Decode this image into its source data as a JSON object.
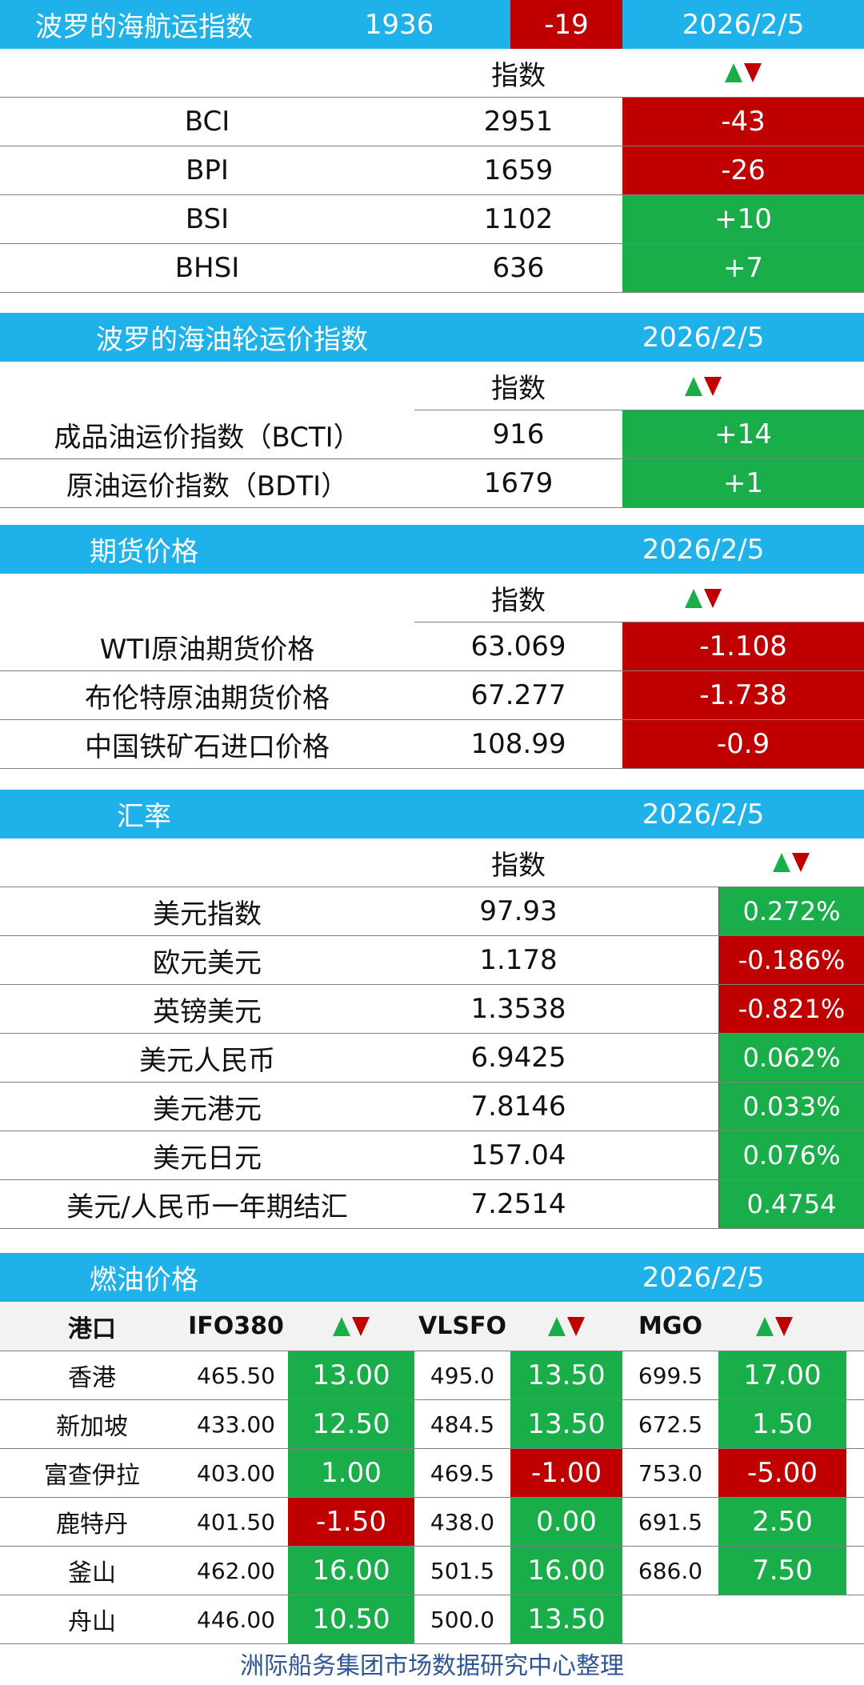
{
  "bdi": {
    "title": "波罗的海航运指数",
    "value": "1936",
    "change": "-19",
    "date": "2026/2/5",
    "col_index": "指数",
    "rows": [
      {
        "name": "BCI",
        "value": "2951",
        "change": "-43"
      },
      {
        "name": "BPI",
        "value": "1659",
        "change": "-26"
      },
      {
        "name": "BSI",
        "value": "1102",
        "change": "+10"
      },
      {
        "name": "BHSI",
        "value": "636",
        "change": "+7"
      }
    ]
  },
  "tanker": {
    "title": "波罗的海油轮运价指数",
    "date": "2026/2/5",
    "col_index": "指数",
    "rows": [
      {
        "name": "成品油运价指数（BCTI）",
        "value": "916",
        "change": "+14"
      },
      {
        "name": "原油运价指数（BDTI）",
        "value": "1679",
        "change": "+1"
      }
    ]
  },
  "futures": {
    "title": "期货价格",
    "date": "2026/2/5",
    "col_index": "指数",
    "rows": [
      {
        "name": "WTI原油期货价格",
        "value": "63.069",
        "change": "-1.108"
      },
      {
        "name": "布伦特原油期货价格",
        "value": "67.277",
        "change": "-1.738"
      },
      {
        "name": "中国铁矿石进口价格",
        "value": "108.99",
        "change": "-0.9"
      }
    ]
  },
  "fx": {
    "title": "汇率",
    "date": "2026/2/5",
    "col_index": "指数",
    "rows": [
      {
        "name": "美元指数",
        "value": "97.93",
        "change": "0.272%"
      },
      {
        "name": "欧元美元",
        "value": "1.178",
        "change": "-0.186%"
      },
      {
        "name": "英镑美元",
        "value": "1.3538",
        "change": "-0.821%"
      },
      {
        "name": "美元人民币",
        "value": "6.9425",
        "change": "0.062%"
      },
      {
        "name": "美元港元",
        "value": "7.8146",
        "change": "0.033%"
      },
      {
        "name": "美元日元",
        "value": "157.04",
        "change": "0.076%"
      },
      {
        "name": "美元/人民币一年期结汇",
        "value": "7.2514",
        "change": "0.4754"
      }
    ]
  },
  "fuel": {
    "title": "燃油价格",
    "date": "2026/2/5",
    "headers": {
      "port": "港口",
      "ifo": "IFO380",
      "vlsfo": "VLSFO",
      "mgo": "MGO"
    },
    "rows": [
      {
        "port": "香港",
        "ifo": "465.50",
        "ifo_chg": "13.00",
        "vlsfo": "495.0",
        "vlsfo_chg": "13.50",
        "mgo": "699.5",
        "mgo_chg": "17.00"
      },
      {
        "port": "新加坡",
        "ifo": "433.00",
        "ifo_chg": "12.50",
        "vlsfo": "484.5",
        "vlsfo_chg": "13.50",
        "mgo": "672.5",
        "mgo_chg": "1.50"
      },
      {
        "port": "富查伊拉",
        "ifo": "403.00",
        "ifo_chg": "1.00",
        "vlsfo": "469.5",
        "vlsfo_chg": "-1.00",
        "mgo": "753.0",
        "mgo_chg": "-5.00"
      },
      {
        "port": "鹿特丹",
        "ifo": "401.50",
        "ifo_chg": "-1.50",
        "vlsfo": "438.0",
        "vlsfo_chg": "0.00",
        "mgo": "691.5",
        "mgo_chg": "2.50"
      },
      {
        "port": "釜山",
        "ifo": "462.00",
        "ifo_chg": "16.00",
        "vlsfo": "501.5",
        "vlsfo_chg": "16.00",
        "mgo": "686.0",
        "mgo_chg": "7.50"
      },
      {
        "port": "舟山",
        "ifo": "446.00",
        "ifo_chg": "10.50",
        "vlsfo": "500.0",
        "vlsfo_chg": "13.50",
        "mgo": "",
        "mgo_chg": ""
      }
    ]
  },
  "footer": "洲际船务集团市场数据研究中心整理",
  "colors": {
    "header": "#1fb2ea",
    "up": "#1aae4a",
    "down": "#c00000",
    "fuel_header": "#f2f2f2",
    "footer_text": "#2f5597"
  }
}
